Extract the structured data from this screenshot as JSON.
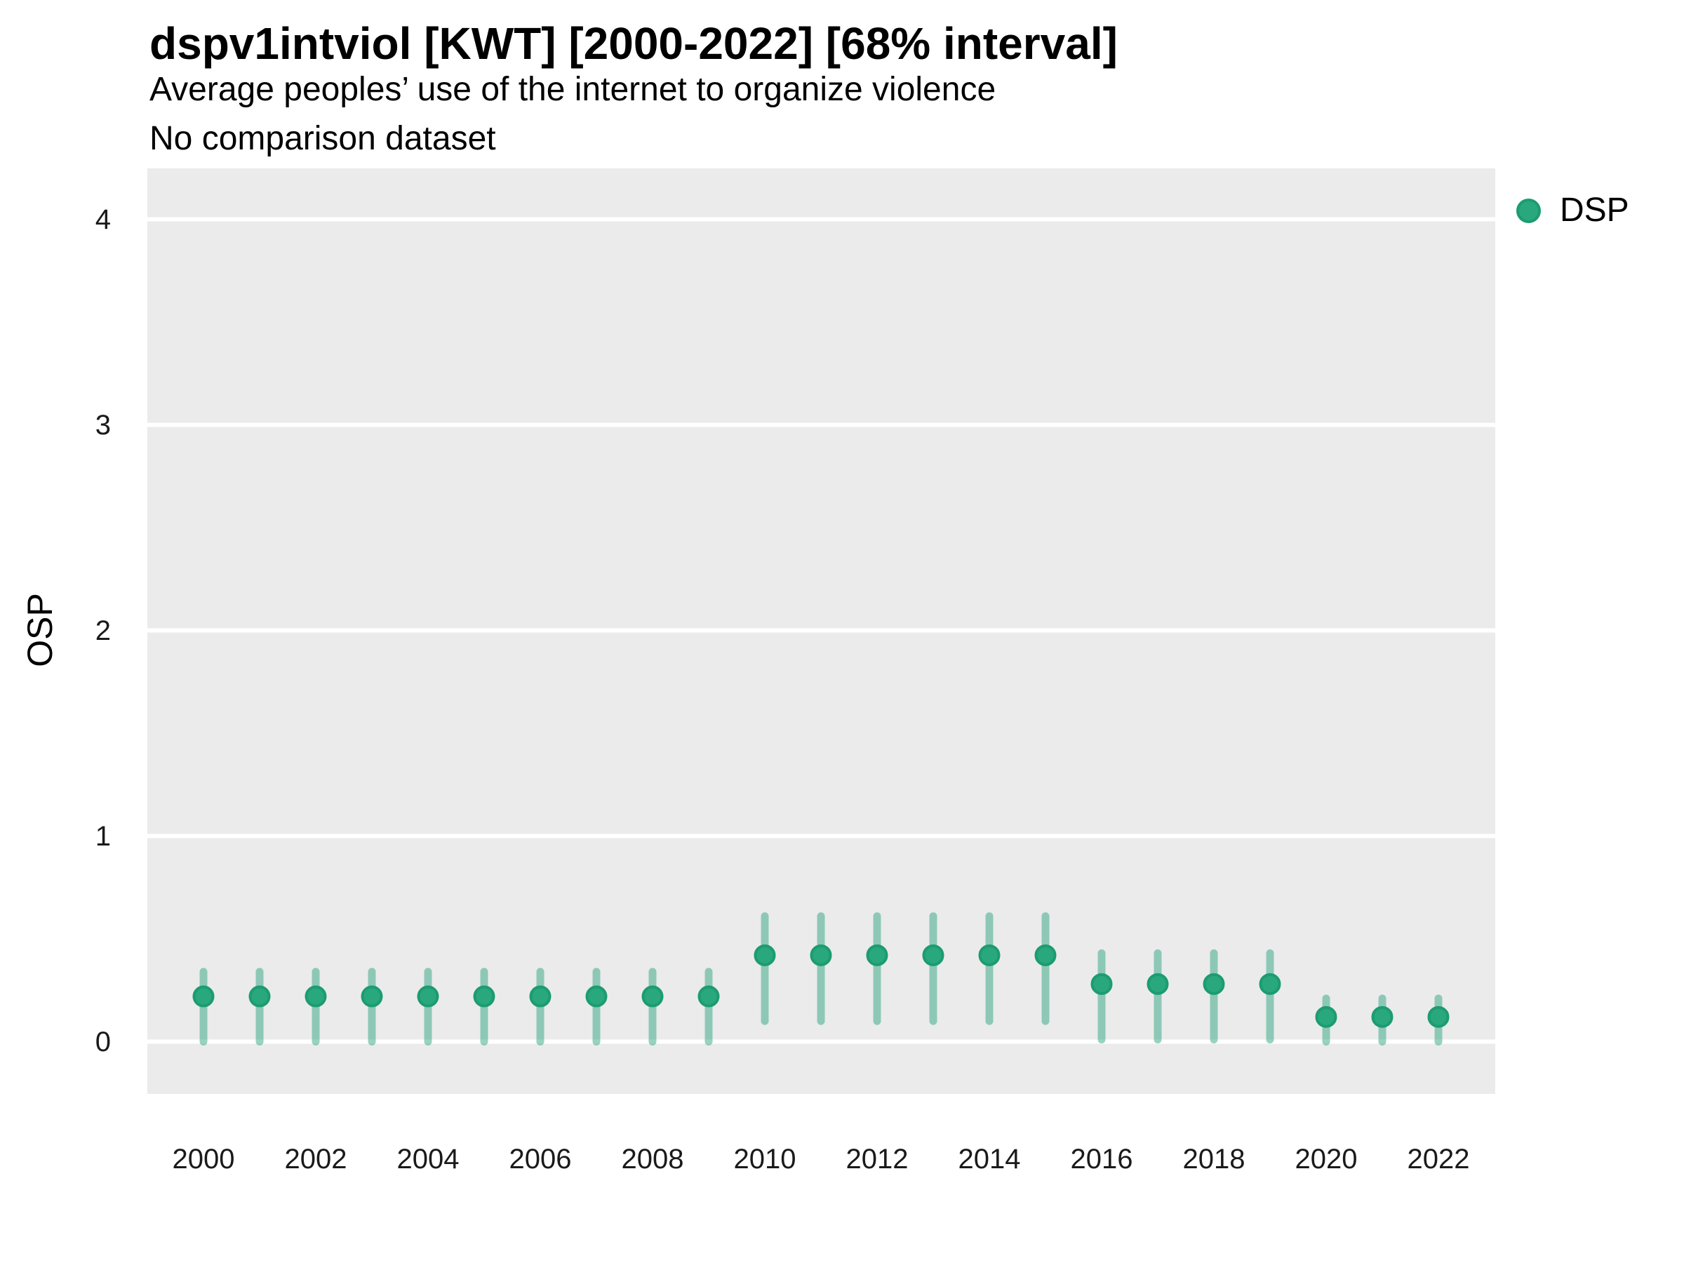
{
  "header": {
    "title": "dspv1intviol [KWT] [2000-2022] [68% interval]",
    "subtitle": "Average peoples’ use of the internet to organize violence",
    "note": "No comparison dataset"
  },
  "axes": {
    "y_label": "OSP",
    "x_label": ""
  },
  "legend": {
    "items": [
      {
        "label": "DSP",
        "color": "#2aa87d"
      }
    ]
  },
  "colors": {
    "panel_background": "#ebebeb",
    "gridline": "#ffffff",
    "point_fill": "#2aa87d",
    "point_stroke": "#1c9c70",
    "interval_bar": "rgba(27,158,119,0.45)",
    "page_background": "#ffffff",
    "text": "#000000"
  },
  "chart_data": {
    "type": "pointrange",
    "title": "dspv1intviol [KWT] [2000-2022] [68% interval]",
    "subtitle": "Average peoples’ use of the internet to organize violence",
    "note": "No comparison dataset",
    "interval_label": "68% interval",
    "country": "KWT",
    "xlabel": "",
    "ylabel": "OSP",
    "grid": "major-horizontal-white, no minor, no vertical",
    "legend_position": "right-top",
    "ylim": [
      -0.25,
      4.25
    ],
    "y_ticks": [
      0,
      1,
      2,
      3,
      4
    ],
    "x_tick_labels": [
      2000,
      2002,
      2004,
      2006,
      2008,
      2010,
      2012,
      2014,
      2016,
      2018,
      2020,
      2022
    ],
    "x": [
      2000,
      2001,
      2002,
      2003,
      2004,
      2005,
      2006,
      2007,
      2008,
      2009,
      2010,
      2011,
      2012,
      2013,
      2014,
      2015,
      2016,
      2017,
      2018,
      2019,
      2020,
      2021,
      2022
    ],
    "series": [
      {
        "name": "DSP",
        "estimates": [
          0.22,
          0.22,
          0.22,
          0.22,
          0.22,
          0.22,
          0.22,
          0.22,
          0.22,
          0.22,
          0.42,
          0.42,
          0.42,
          0.42,
          0.42,
          0.42,
          0.28,
          0.28,
          0.28,
          0.28,
          0.12,
          0.12,
          0.12
        ],
        "lower": [
          0.0,
          0.0,
          0.0,
          0.0,
          0.0,
          0.0,
          0.0,
          0.0,
          0.0,
          0.0,
          0.1,
          0.1,
          0.1,
          0.1,
          0.1,
          0.1,
          0.01,
          0.01,
          0.01,
          0.01,
          0.0,
          0.0,
          0.0
        ],
        "upper": [
          0.34,
          0.34,
          0.34,
          0.34,
          0.34,
          0.34,
          0.34,
          0.34,
          0.34,
          0.34,
          0.61,
          0.61,
          0.61,
          0.61,
          0.61,
          0.61,
          0.43,
          0.43,
          0.43,
          0.43,
          0.21,
          0.21,
          0.21
        ]
      }
    ]
  }
}
